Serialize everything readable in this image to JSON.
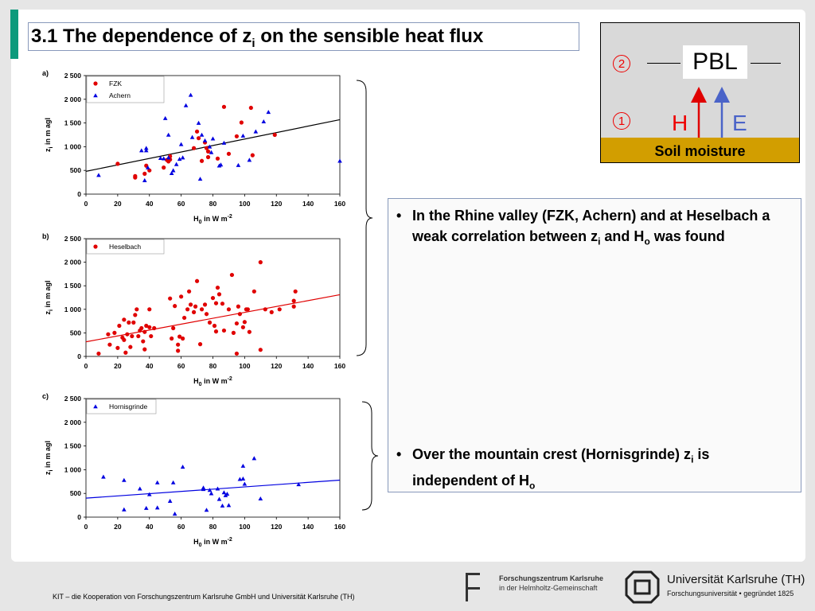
{
  "slide": {
    "title_main": "3.1 The dependence of z",
    "title_sub": "i",
    "title_rest": " on the sensible heat flux"
  },
  "pbl_diagram": {
    "label": "PBL",
    "circle_1": "1",
    "circle_2": "2",
    "h_label": "H",
    "e_label": "E",
    "soil_label": "Soil moisture",
    "colors": {
      "soil": "#d29e00",
      "h_arrow": "#e00000",
      "e_arrow": "#4a63c8"
    }
  },
  "bullets": [
    {
      "parts": [
        "In the Rhine valley (FZK, Achern) and at Heselbach a weak correlation between z",
        "i",
        " and H",
        "o",
        " was found"
      ]
    },
    {
      "parts": [
        "Over the mountain crest (Hornisgrinde) z",
        "i",
        " is independent of H",
        "o",
        ""
      ]
    }
  ],
  "footer": {
    "text": "KIT – die Kooperation von Forschungszentrum Karlsruhe GmbH und Universität Karlsruhe (TH)",
    "fzk_line1": "Forschungszentrum Karlsruhe",
    "fzk_line2": "in der Helmholtz-Gemeinschaft",
    "uni_line1": "Universität Karlsruhe (TH)",
    "uni_line2": "Forschungsuniversität • gegründet 1825"
  },
  "chart_data": [
    {
      "type": "scatter",
      "panel": "a)",
      "xlabel_main": "H",
      "xlabel_sub": "0",
      "xlabel_rest": " in W m",
      "xlabel_sup": "-2",
      "ylabel_main": "z",
      "ylabel_sub": "i",
      "ylabel_rest": " in m agl",
      "xlim": [
        0,
        160
      ],
      "ylim": [
        0,
        2500
      ],
      "xticks": [
        0,
        20,
        40,
        60,
        80,
        100,
        120,
        140,
        160
      ],
      "yticks": [
        0,
        500,
        1000,
        1500,
        2000,
        2500
      ],
      "ytick_labels": [
        "0",
        "500",
        "1 000",
        "1 500",
        "2 000",
        "2 500"
      ],
      "legend_position": "top-left",
      "fit_line": {
        "color": "#000000",
        "x": [
          0,
          160
        ],
        "y": [
          480,
          1570
        ]
      },
      "series": [
        {
          "name": "FZK",
          "marker": "circle",
          "color": "#e00000",
          "points": [
            [
              20,
              640
            ],
            [
              31,
              380
            ],
            [
              31,
              350
            ],
            [
              37,
              430
            ],
            [
              38,
              600
            ],
            [
              40,
              500
            ],
            [
              49,
              560
            ],
            [
              51,
              720
            ],
            [
              52,
              690
            ],
            [
              53,
              800
            ],
            [
              68,
              970
            ],
            [
              70,
              1320
            ],
            [
              71,
              1180
            ],
            [
              75,
              1090
            ],
            [
              76,
              970
            ],
            [
              77,
              900
            ],
            [
              77,
              780
            ],
            [
              83,
              750
            ],
            [
              87,
              1840
            ],
            [
              90,
              850
            ],
            [
              95,
              1220
            ],
            [
              98,
              1510
            ],
            [
              104,
              1820
            ],
            [
              105,
              820
            ],
            [
              119,
              1250
            ],
            [
              73,
              700
            ],
            [
              53,
              730
            ]
          ]
        },
        {
          "name": "Achern",
          "marker": "triangle",
          "color": "#0000e0",
          "points": [
            [
              8,
              400
            ],
            [
              35,
              920
            ],
            [
              38,
              970
            ],
            [
              38,
              920
            ],
            [
              37,
              290
            ],
            [
              39,
              560
            ],
            [
              49,
              750
            ],
            [
              50,
              1600
            ],
            [
              52,
              770
            ],
            [
              52,
              1250
            ],
            [
              54,
              440
            ],
            [
              55,
              500
            ],
            [
              57,
              630
            ],
            [
              59,
              740
            ],
            [
              61,
              770
            ],
            [
              60,
              1050
            ],
            [
              63,
              1870
            ],
            [
              66,
              2090
            ],
            [
              67,
              1200
            ],
            [
              71,
              1500
            ],
            [
              72,
              320
            ],
            [
              73,
              1250
            ],
            [
              75,
              1130
            ],
            [
              78,
              1000
            ],
            [
              80,
              1170
            ],
            [
              84,
              600
            ],
            [
              85,
              620
            ],
            [
              87,
              1080
            ],
            [
              96,
              610
            ],
            [
              99,
              1230
            ],
            [
              103,
              720
            ],
            [
              107,
              1320
            ],
            [
              112,
              1530
            ],
            [
              115,
              1730
            ],
            [
              160,
              700
            ],
            [
              79,
              880
            ],
            [
              47,
              760
            ]
          ]
        }
      ]
    },
    {
      "type": "scatter",
      "panel": "b)",
      "xlabel_main": "H",
      "xlabel_sub": "0",
      "xlabel_rest": " in W m",
      "xlabel_sup": "-2",
      "ylabel_main": "z",
      "ylabel_sub": "i",
      "ylabel_rest": " in m agl",
      "xlim": [
        0,
        160
      ],
      "ylim": [
        0,
        2500
      ],
      "xticks": [
        0,
        20,
        40,
        60,
        80,
        100,
        120,
        140,
        160
      ],
      "yticks": [
        0,
        500,
        1000,
        1500,
        2000,
        2500
      ],
      "ytick_labels": [
        "0",
        "500",
        "1 000",
        "1 500",
        "2 000",
        "2 500"
      ],
      "legend_position": "top-left",
      "fit_line": {
        "color": "#e00000",
        "x": [
          0,
          160
        ],
        "y": [
          310,
          1310
        ]
      },
      "series": [
        {
          "name": "Heselbach",
          "marker": "circle",
          "color": "#e00000",
          "points": [
            [
              8,
              60
            ],
            [
              14,
              470
            ],
            [
              15,
              250
            ],
            [
              18,
              500
            ],
            [
              20,
              180
            ],
            [
              21,
              650
            ],
            [
              23,
              400
            ],
            [
              24,
              350
            ],
            [
              24,
              780
            ],
            [
              25,
              80
            ],
            [
              26,
              470
            ],
            [
              27,
              720
            ],
            [
              28,
              200
            ],
            [
              29,
              430
            ],
            [
              30,
              720
            ],
            [
              31,
              880
            ],
            [
              32,
              1000
            ],
            [
              33,
              430
            ],
            [
              34,
              550
            ],
            [
              35,
              600
            ],
            [
              36,
              320
            ],
            [
              37,
              520
            ],
            [
              37,
              150
            ],
            [
              38,
              650
            ],
            [
              40,
              620
            ],
            [
              40,
              1000
            ],
            [
              41,
              430
            ],
            [
              43,
              600
            ],
            [
              53,
              1230
            ],
            [
              54,
              380
            ],
            [
              55,
              600
            ],
            [
              56,
              1070
            ],
            [
              58,
              120
            ],
            [
              58,
              250
            ],
            [
              59,
              420
            ],
            [
              60,
              1270
            ],
            [
              61,
              380
            ],
            [
              62,
              820
            ],
            [
              64,
              1000
            ],
            [
              65,
              1380
            ],
            [
              66,
              1100
            ],
            [
              68,
              940
            ],
            [
              69,
              1060
            ],
            [
              70,
              1600
            ],
            [
              72,
              260
            ],
            [
              73,
              1000
            ],
            [
              75,
              1100
            ],
            [
              76,
              900
            ],
            [
              78,
              720
            ],
            [
              80,
              1240
            ],
            [
              81,
              650
            ],
            [
              82,
              530
            ],
            [
              82,
              1130
            ],
            [
              83,
              1460
            ],
            [
              84,
              1320
            ],
            [
              86,
              1120
            ],
            [
              87,
              550
            ],
            [
              90,
              1000
            ],
            [
              92,
              1730
            ],
            [
              93,
              500
            ],
            [
              95,
              700
            ],
            [
              96,
              1060
            ],
            [
              97,
              900
            ],
            [
              99,
              620
            ],
            [
              100,
              730
            ],
            [
              101,
              1000
            ],
            [
              102,
              1000
            ],
            [
              103,
              520
            ],
            [
              106,
              1380
            ],
            [
              110,
              2000
            ],
            [
              110,
              140
            ],
            [
              113,
              1000
            ],
            [
              117,
              940
            ],
            [
              122,
              1000
            ],
            [
              131,
              1060
            ],
            [
              131,
              1180
            ],
            [
              132,
              1380
            ],
            [
              95,
              60
            ]
          ]
        }
      ]
    },
    {
      "type": "scatter",
      "panel": "c)",
      "xlabel_main": "H",
      "xlabel_sub": "0",
      "xlabel_rest": " in W m",
      "xlabel_sup": "-2",
      "ylabel_main": "z",
      "ylabel_sub": "i",
      "ylabel_rest": " in m agl",
      "xlim": [
        0,
        160
      ],
      "ylim": [
        0,
        2500
      ],
      "xticks": [
        0,
        20,
        40,
        60,
        80,
        100,
        120,
        140,
        160
      ],
      "yticks": [
        0,
        500,
        1000,
        1500,
        2000,
        2500
      ],
      "ytick_labels": [
        "0",
        "500",
        "1 000",
        "1 500",
        "2 000",
        "2 500"
      ],
      "legend_position": "top-left",
      "fit_line": {
        "color": "#0000e0",
        "x": [
          0,
          160
        ],
        "y": [
          400,
          780
        ]
      },
      "series": [
        {
          "name": "Hornisgrinde",
          "marker": "triangle",
          "color": "#0000e0",
          "points": [
            [
              11,
              850
            ],
            [
              24,
              780
            ],
            [
              24,
              160
            ],
            [
              34,
              600
            ],
            [
              38,
              190
            ],
            [
              40,
              480
            ],
            [
              45,
              730
            ],
            [
              45,
              200
            ],
            [
              53,
              340
            ],
            [
              55,
              730
            ],
            [
              56,
              70
            ],
            [
              61,
              1060
            ],
            [
              74,
              620
            ],
            [
              74,
              590
            ],
            [
              76,
              150
            ],
            [
              78,
              570
            ],
            [
              79,
              500
            ],
            [
              83,
              600
            ],
            [
              84,
              380
            ],
            [
              86,
              240
            ],
            [
              87,
              520
            ],
            [
              88,
              460
            ],
            [
              89,
              490
            ],
            [
              90,
              250
            ],
            [
              97,
              800
            ],
            [
              99,
              1080
            ],
            [
              99,
              810
            ],
            [
              100,
              700
            ],
            [
              106,
              1240
            ],
            [
              110,
              390
            ],
            [
              134,
              690
            ]
          ]
        }
      ]
    }
  ]
}
